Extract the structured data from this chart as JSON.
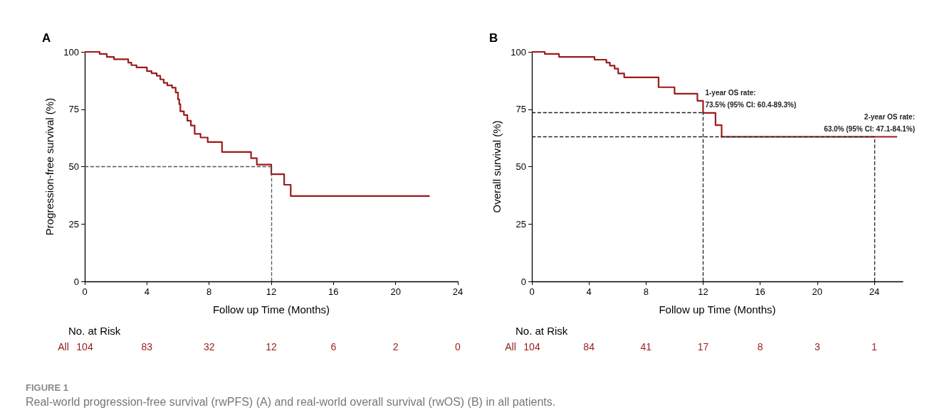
{
  "chart_data": [
    {
      "type": "step",
      "title": "A",
      "xlabel": "Follow up Time (Months)",
      "ylabel": "Progression-free survival (%)",
      "xlim": [
        0,
        24
      ],
      "xticks": [
        0,
        4,
        8,
        12,
        16,
        20,
        24
      ],
      "ylim": [
        0,
        100
      ],
      "yticks": [
        0,
        25,
        50,
        75,
        100
      ],
      "grid": false,
      "line_style": "solid",
      "marker": "none",
      "series": [
        {
          "color": "#9b1b1b",
          "x": [
            0,
            0.96,
            1.42,
            1.88,
            2.8,
            3.0,
            3.33,
            4.0,
            4.3,
            4.63,
            4.86,
            5.08,
            5.31,
            5.62,
            5.85,
            6.0,
            6.08,
            6.15,
            6.38,
            6.6,
            6.83,
            7.07,
            7.45,
            7.91,
            8.83,
            10.7,
            11.07,
            12.0,
            12.83,
            13.25,
            22.19
          ],
          "values": [
            100,
            99.1,
            97.8,
            96.8,
            95.3,
            94.2,
            93.2,
            91.6,
            90.7,
            89.6,
            88.0,
            86.5,
            85.4,
            84.4,
            82.3,
            79.3,
            77.2,
            74.1,
            72.5,
            70.0,
            67.9,
            64.3,
            62.7,
            60.7,
            56.4,
            53.7,
            50.9,
            46.7,
            42.1,
            37.2,
            37.2
          ]
        }
      ],
      "ref_lines": [
        {
          "axis": "y",
          "value": 50,
          "color": "#555555",
          "line_style": "dashed"
        },
        {
          "axis": "x",
          "value": 12,
          "color": "#555555",
          "line_style": "dashed"
        }
      ],
      "annotations": [
        "No. at Risk",
        "All",
        "104",
        "83",
        "32",
        "12",
        "6",
        "2",
        "0",
        "FIGURE 1",
        "Real-world progression-free survival (rwPFS) (A) and real-world overall survival (rwOS) (B) in all patients."
      ]
    },
    {
      "type": "step",
      "title": "B",
      "xlabel": "Follow up Time (Months)",
      "ylabel": "Overall survival (%)",
      "xlim": [
        0,
        26
      ],
      "xticks": [
        0,
        4,
        8,
        12,
        16,
        20,
        24
      ],
      "ylim": [
        0,
        100
      ],
      "yticks": [
        0,
        25,
        50,
        75,
        100
      ],
      "grid": false,
      "line_style": "solid",
      "marker": "none",
      "series": [
        {
          "color": "#9b1b1b",
          "x": [
            0,
            0.9,
            1.9,
            4.39,
            5.22,
            5.47,
            5.8,
            6.05,
            6.47,
            8.88,
            10.0,
            11.6,
            12.0,
            12.87,
            13.3,
            25.6
          ],
          "values": [
            100,
            99.1,
            97.8,
            96.6,
            95.3,
            94.0,
            92.7,
            90.6,
            88.9,
            84.6,
            81.8,
            78.7,
            73.4,
            68.1,
            63.0,
            63.0
          ]
        }
      ],
      "ref_lines": [
        {
          "axis": "y",
          "value": 73.5,
          "color": "#222222",
          "line_style": "dashed"
        },
        {
          "axis": "y",
          "value": 63.0,
          "color": "#222222",
          "line_style": "dashed"
        },
        {
          "axis": "x",
          "value": 12,
          "color": "#222222",
          "line_style": "dashed"
        },
        {
          "axis": "x",
          "value": 24,
          "color": "#222222",
          "line_style": "dashed"
        }
      ],
      "annotations": [
        "No. at Risk",
        "All",
        "104",
        "84",
        "41",
        "17",
        "8",
        "3",
        "1",
        {
          "text": "1-year OS rate:\n73.5% (95% CI: 60.4-89.3%)",
          "x": 12,
          "y": 73.5
        },
        {
          "text": "2-year OS rate:\n63.0% (95% CI: 47.1-84.1%)",
          "x": 24,
          "y": 63.0
        }
      ]
    }
  ]
}
